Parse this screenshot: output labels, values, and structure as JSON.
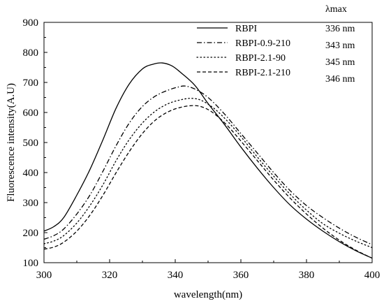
{
  "chart_data": {
    "type": "line",
    "title": "",
    "xlabel": "wavelength(nm)",
    "ylabel": "Fluorescence intensity(A.U)",
    "xlim": [
      300,
      400
    ],
    "ylim": [
      100,
      900
    ],
    "xticks": [
      300,
      320,
      340,
      360,
      380,
      400
    ],
    "yticks": [
      100,
      200,
      300,
      400,
      500,
      600,
      700,
      800,
      900
    ],
    "grid": false,
    "legend_position": "top-right",
    "lambda_header": "λmax",
    "series": [
      {
        "name": "RBPI",
        "lambda_max": "336 nm",
        "dash": "solid",
        "x": [
          300,
          303,
          306,
          310,
          314,
          318,
          322,
          326,
          330,
          333,
          336,
          339,
          342,
          346,
          350,
          355,
          360,
          365,
          370,
          375,
          380,
          385,
          390,
          395,
          400
        ],
        "y": [
          205,
          220,
          250,
          325,
          410,
          510,
          615,
          695,
          745,
          760,
          765,
          755,
          730,
          690,
          630,
          560,
          485,
          415,
          350,
          292,
          245,
          205,
          170,
          140,
          115
        ]
      },
      {
        "name": "RBPI-0.9-210",
        "lambda_max": "343 nm",
        "dash": "dashdot",
        "x": [
          300,
          303,
          306,
          310,
          314,
          318,
          322,
          326,
          330,
          334,
          338,
          341,
          343,
          346,
          350,
          355,
          360,
          365,
          370,
          375,
          380,
          385,
          390,
          395,
          400
        ],
        "y": [
          178,
          190,
          212,
          262,
          325,
          405,
          490,
          565,
          620,
          655,
          675,
          685,
          688,
          678,
          650,
          595,
          530,
          465,
          400,
          340,
          290,
          250,
          215,
          185,
          160
        ]
      },
      {
        "name": "RBPI-2.1-90",
        "lambda_max": "345 nm",
        "dash": "dotted",
        "x": [
          300,
          303,
          306,
          310,
          314,
          318,
          322,
          326,
          330,
          334,
          338,
          342,
          345,
          348,
          352,
          356,
          360,
          365,
          370,
          375,
          380,
          385,
          390,
          395,
          400
        ],
        "y": [
          163,
          172,
          190,
          232,
          290,
          360,
          440,
          510,
          565,
          605,
          630,
          643,
          647,
          640,
          612,
          570,
          520,
          452,
          388,
          328,
          275,
          230,
          198,
          172,
          150
        ]
      },
      {
        "name": "RBPI-2.1-210",
        "lambda_max": "346 nm",
        "dash": "dashed",
        "x": [
          300,
          303,
          306,
          310,
          314,
          318,
          322,
          326,
          330,
          334,
          338,
          342,
          346,
          349,
          352,
          356,
          360,
          365,
          370,
          375,
          380,
          385,
          390,
          395,
          400
        ],
        "y": [
          145,
          152,
          168,
          205,
          258,
          325,
          400,
          470,
          530,
          575,
          603,
          618,
          623,
          615,
          595,
          555,
          505,
          440,
          375,
          315,
          262,
          215,
          175,
          142,
          115
        ]
      }
    ]
  }
}
